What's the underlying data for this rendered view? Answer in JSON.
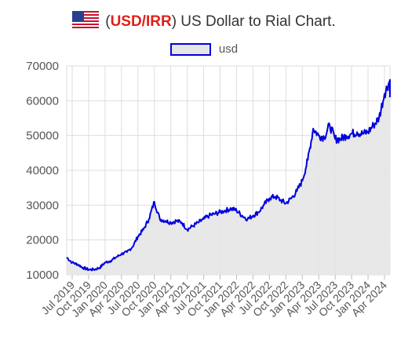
{
  "header": {
    "flag_icon": "us-flag-icon",
    "open_paren": "(",
    "code": "USD/IRR",
    "close_paren": ")",
    "title_rest": " US Dollar to Rial Chart."
  },
  "chart_data": {
    "type": "area",
    "title": "(USD/IRR) US Dollar to Rial Chart.",
    "legend": {
      "placement": "top-center",
      "entries": [
        "usd"
      ]
    },
    "grid": true,
    "ylim": [
      10000,
      70000
    ],
    "y_ticks": [
      "70000",
      "60000",
      "50000",
      "40000",
      "30000",
      "20000",
      "10000"
    ],
    "x_ticks": [
      "Jul 2019",
      "Oct 2019",
      "Jan 2020",
      "Apr 2020",
      "Jul 2020",
      "Oct 2020",
      "Jan 2021",
      "Apr 2021",
      "Jul 2021",
      "Oct 2021",
      "Jan 2022",
      "Apr 2022",
      "Jul 2022",
      "Oct 2022",
      "Jan 2023",
      "Apr 2023",
      "Jul 2023",
      "Oct 2023",
      "Jan 2024",
      "Apr 2024"
    ],
    "colors": {
      "line": "#0000dd",
      "fill": "#e6e6e6",
      "grid": "#dddddd"
    },
    "series": [
      {
        "name": "usd",
        "x": [
          "Jun 2019",
          "Jul 2019",
          "Aug 2019",
          "Sep 2019",
          "Oct 2019",
          "Nov 2019",
          "Dec 2019",
          "Jan 2020",
          "Feb 2020",
          "Mar 2020",
          "Apr 2020",
          "May 2020",
          "Jun 2020",
          "Jul 2020",
          "Aug 2020",
          "Sep 2020",
          "Oct 2020",
          "Nov 2020",
          "Dec 2020",
          "Jan 2021",
          "Feb 2021",
          "Mar 2021",
          "Apr 2021",
          "May 2021",
          "Jun 2021",
          "Jul 2021",
          "Aug 2021",
          "Sep 2021",
          "Oct 2021",
          "Nov 2021",
          "Dec 2021",
          "Jan 2022",
          "Feb 2022",
          "Mar 2022",
          "Apr 2022",
          "May 2022",
          "Jun 2022",
          "Jul 2022",
          "Aug 2022",
          "Sep 2022",
          "Oct 2022",
          "Nov 2022",
          "Dec 2022",
          "Jan 2023",
          "Feb 2023",
          "Mar 2023",
          "Apr 2023",
          "May 2023",
          "Jun 2023",
          "Jul 2023",
          "Aug 2023",
          "Sep 2023",
          "Oct 2023",
          "Nov 2023",
          "Dec 2023",
          "Jan 2024",
          "Feb 2024",
          "Mar 2024",
          "Apr 2024",
          "May 2024"
        ],
        "values": [
          15000,
          13500,
          13000,
          12000,
          11500,
          11500,
          12000,
          13500,
          14000,
          15000,
          16000,
          16500,
          18000,
          21000,
          23000,
          26000,
          31000,
          26000,
          25500,
          25000,
          25500,
          25000,
          23000,
          24000,
          25000,
          26000,
          27000,
          27500,
          28000,
          28500,
          29000,
          28500,
          27000,
          26000,
          27000,
          28000,
          30000,
          32000,
          32500,
          31500,
          30500,
          32000,
          34000,
          37000,
          43000,
          52000,
          50000,
          49500,
          53000,
          49000,
          49000,
          50000,
          50500,
          51000,
          50500,
          51000,
          53000,
          55000,
          62000,
          66000
        ]
      }
    ]
  }
}
